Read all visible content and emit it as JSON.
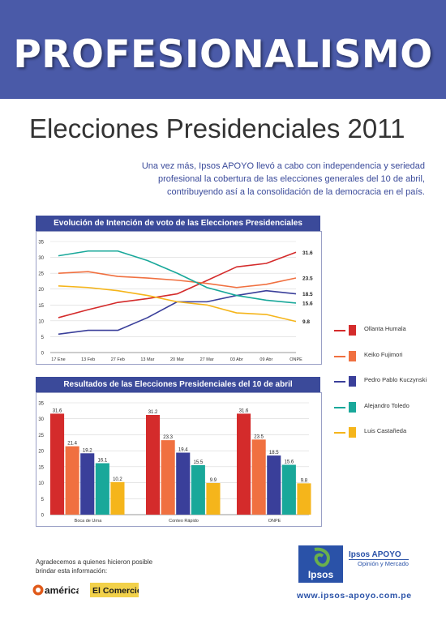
{
  "banner": {
    "title": "PROFESIONALISMO"
  },
  "headline": "Elecciones Presidenciales 2011",
  "intro": "Una vez más, Ipsos APOYO llevó a cabo con independencia y seriedad profesional la cobertura de las elecciones generales del 10 de abril, contribuyendo así a la consolidación de la democracia en el país.",
  "colors": {
    "banner": "#4a5aa8",
    "panel": "#3b4a9a"
  },
  "chart_data": [
    {
      "type": "line",
      "title": "Evolución de Intención de voto de las Elecciones Presidenciales",
      "categories": [
        "17 Ene",
        "13 Feb",
        "27 Feb",
        "13 Mar",
        "20 Mar",
        "27 Mar",
        "03 Abr",
        "09 Abr",
        "ONPE"
      ],
      "ylim": [
        0,
        35
      ],
      "yticks": [
        0,
        5,
        10,
        15,
        20,
        25,
        30,
        35
      ],
      "grid": true,
      "series": [
        {
          "name": "Ollanta Humala",
          "color": "#d42b2b",
          "values": [
            11,
            13.5,
            15.8,
            17,
            18.5,
            22.7,
            27,
            28.1,
            31.6
          ],
          "end_label": "31.6"
        },
        {
          "name": "Keiko Fujimori",
          "color": "#f07040",
          "values": [
            25,
            25.5,
            24,
            23.5,
            22.8,
            21.8,
            20.5,
            21.5,
            23.5
          ],
          "end_label": "23.5"
        },
        {
          "name": "Pedro Pablo Kuczynski",
          "color": "#3a3f9a",
          "values": [
            5.8,
            7,
            7,
            11,
            16,
            16,
            18,
            19.5,
            18.5
          ],
          "end_label": "18.5"
        },
        {
          "name": "Alejandro Toledo",
          "color": "#19a89a",
          "values": [
            30.5,
            32,
            32,
            29,
            25,
            20.5,
            18,
            16.5,
            15.6
          ],
          "end_label": "15.6"
        },
        {
          "name": "Luis Castañeda",
          "color": "#f5b51b",
          "values": [
            21,
            20.5,
            19.5,
            18,
            16,
            15,
            12.5,
            12,
            9.8
          ],
          "end_label": "9.8"
        }
      ]
    },
    {
      "type": "bar",
      "title": "Resultados de las Elecciones Presidenciales del 10 de abril",
      "categories": [
        "Boca de Urna",
        "Conteo Rápido",
        "ONPE"
      ],
      "ylim": [
        0,
        35
      ],
      "yticks": [
        0,
        5,
        10,
        15,
        20,
        25,
        30,
        35
      ],
      "grid": true,
      "series": [
        {
          "name": "Ollanta Humala",
          "color": "#d42b2b",
          "values": [
            31.6,
            31.2,
            31.6
          ],
          "labels": [
            "31.6",
            "31.2",
            "31.6"
          ]
        },
        {
          "name": "Keiko Fujimori",
          "color": "#f07040",
          "values": [
            21.4,
            23.3,
            23.5
          ],
          "labels": [
            "21.4",
            "23.3",
            "23.5"
          ]
        },
        {
          "name": "Pedro Pablo Kuczynski",
          "color": "#3a3f9a",
          "values": [
            19.2,
            19.4,
            18.5
          ],
          "labels": [
            "19.2",
            "19.4",
            "18.5"
          ]
        },
        {
          "name": "Alejandro Toledo",
          "color": "#19a89a",
          "values": [
            16.1,
            15.5,
            15.6
          ],
          "labels": [
            "16.1",
            "15.5",
            "15.6"
          ]
        },
        {
          "name": "Luis Castañeda",
          "color": "#f5b51b",
          "values": [
            10.2,
            9.9,
            9.8
          ],
          "labels": [
            "10.2",
            "9.9",
            "9.8"
          ]
        }
      ]
    }
  ],
  "legend": [
    {
      "label": "Ollanta Humala",
      "color": "#d42b2b"
    },
    {
      "label": "Keiko Fujimori",
      "color": "#f07040"
    },
    {
      "label": "Pedro Pablo Kuczynski",
      "color": "#3a3f9a"
    },
    {
      "label": "Alejandro Toledo",
      "color": "#19a89a"
    },
    {
      "label": "Luis Castañeda",
      "color": "#f5b51b"
    }
  ],
  "footer": {
    "thanks": "Agradecemos a quienes hicieron posible brindar esta información:",
    "sponsor_logos": [
      "américa",
      "El Comercio"
    ],
    "brand": "Ipsos APOYO",
    "brand_sub": "Opinión y Mercado",
    "brand_box": "Ipsos",
    "url": "www.ipsos-apoyo.com.pe"
  }
}
